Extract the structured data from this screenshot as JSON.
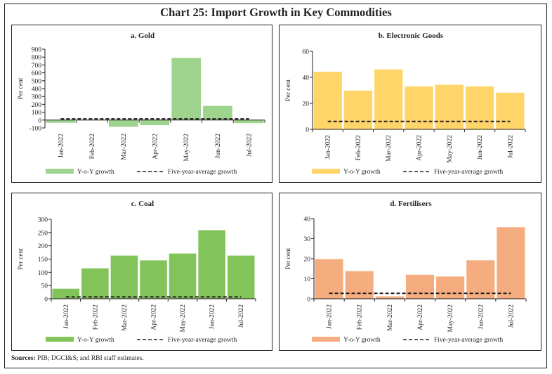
{
  "title": "Chart 25: Import Growth in Key Commodities",
  "sources_label": "Sources:",
  "sources_text": " PIB; DGCI&S; and RBI staff estimates.",
  "chart_data": [
    {
      "id": "gold",
      "type": "bar",
      "title": "a. Gold",
      "ylabel": "Per cent",
      "xlabel": "",
      "categories": [
        "Jan-2022",
        "Feb-2022",
        "Mar-2022",
        "Apr-2022",
        "May-2022",
        "Jun-2022",
        "Jul-2022"
      ],
      "series": [
        {
          "name": "Y-o-Y growth",
          "kind": "bar",
          "color": "#9fd48e",
          "values": [
            -35,
            -5,
            -85,
            -65,
            790,
            180,
            -40
          ]
        },
        {
          "name": "Five-year-average growth",
          "kind": "dashed-line",
          "color": "#231f20",
          "values": [
            15,
            15,
            15,
            15,
            15,
            15,
            15
          ]
        }
      ],
      "ylim": [
        -100,
        900
      ],
      "yticks": [
        -100,
        0,
        100,
        200,
        300,
        400,
        500,
        600,
        700,
        800,
        900
      ],
      "grid": false,
      "legend_position": "bottom"
    },
    {
      "id": "electronics",
      "type": "bar",
      "title": "b. Electronic Goods",
      "ylabel": "Per cent",
      "xlabel": "",
      "categories": [
        "Jan-2022",
        "Feb-2022",
        "Mar-2022",
        "Apr-2022",
        "May-2022",
        "Jun-2022",
        "Jul-2022"
      ],
      "series": [
        {
          "name": "Y-o-Y growth",
          "kind": "bar",
          "color": "#ffd469",
          "values": [
            44.3,
            29.8,
            46.1,
            33.0,
            34.3,
            33.0,
            28.2
          ]
        },
        {
          "name": "Five-year-average growth",
          "kind": "dashed-line",
          "color": "#231f20",
          "values": [
            6.1,
            6.1,
            6.1,
            6.1,
            6.1,
            6.1,
            6.1
          ]
        }
      ],
      "ylim": [
        0,
        60
      ],
      "yticks": [
        0,
        20,
        40,
        60
      ],
      "grid": false,
      "legend_position": "bottom"
    },
    {
      "id": "coal",
      "type": "bar",
      "title": "c. Coal",
      "ylabel": "Per cent",
      "xlabel": "",
      "categories": [
        "Jan-2022",
        "Feb-2022",
        "Mar-2022",
        "Apr-2022",
        "May-2022",
        "Jun-2022",
        "Jul-2022"
      ],
      "series": [
        {
          "name": "Y-o-Y growth",
          "kind": "bar",
          "color": "#82c35a",
          "values": [
            38,
            115,
            163,
            145,
            171,
            259,
            163
          ]
        },
        {
          "name": "Five-year-average growth",
          "kind": "dashed-line",
          "color": "#231f20",
          "values": [
            7,
            7,
            7,
            7,
            7,
            7,
            7
          ]
        }
      ],
      "ylim": [
        0,
        300
      ],
      "yticks": [
        0,
        50,
        100,
        150,
        200,
        250,
        300
      ],
      "grid": false,
      "legend_position": "bottom"
    },
    {
      "id": "fertilisers",
      "type": "bar",
      "title": "d. Fertilisers",
      "ylabel": "Per cent",
      "xlabel": "",
      "categories": [
        "Jan-2022",
        "Feb-2022",
        "Mar-2022",
        "Apr-2022",
        "May-2022",
        "Jun-2022",
        "Jul-2022"
      ],
      "series": [
        {
          "name": "Y-o-Y growth",
          "kind": "bar",
          "color": "#f5ad7f",
          "values": [
            19.8,
            13.8,
            1.2,
            12.0,
            11.1,
            19.2,
            35.7
          ]
        },
        {
          "name": "Five-year-average growth",
          "kind": "dashed-line",
          "color": "#231f20",
          "values": [
            2.7,
            2.7,
            2.7,
            2.7,
            2.7,
            2.7,
            2.7
          ]
        }
      ],
      "ylim": [
        0,
        40
      ],
      "yticks": [
        0,
        10,
        20,
        30,
        40
      ],
      "grid": false,
      "legend_position": "bottom"
    }
  ]
}
